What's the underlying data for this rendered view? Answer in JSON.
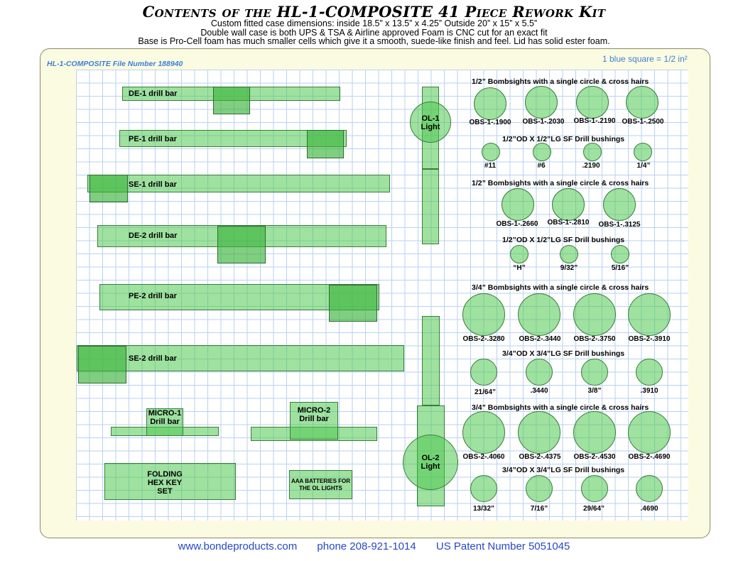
{
  "header": {
    "title": "Contents of the HL-1-COMPOSITE 41 Piece Rework Kit",
    "line1": "Custom fitted case dimensions: inside 18.5” x 13.5” x 4.25” Outside 20” x 15” x 5.5”",
    "line2": "Double wall case is both UPS & TSA & Airline approved Foam is CNC cut for an exact fit",
    "line3": "Base is Pro-Cell foam has much smaller cells which give it a smooth, suede-like finish and feel. Lid has solid ester foam."
  },
  "panel": {
    "file_number": "HL-1-COMPOSITE File Number 188940",
    "scale": "1 blue square = 1/2 in²"
  },
  "drill_bars": [
    "DE-1 drill bar",
    "PE-1 drill bar",
    "SE-1 drill bar",
    "DE-2 drill bar",
    "PE-2 drill bar",
    "SE-2 drill bar"
  ],
  "micro": {
    "m1": "MICRO-1 Drill bar",
    "m2": "MICRO-2 Drill bar"
  },
  "folding_hex": "FOLDING HEX KEY SET",
  "aaa": "AAA BATTERIES FOR THE OL LIGHTS",
  "lights": {
    "ol1": "OL-1 Light",
    "ol2": "OL-2 Light"
  },
  "sections": {
    "s1_header": "1/2” Bombsights with a single circle & cross hairs",
    "s1_items": [
      "OBS-1-.1900",
      "OBS-1-.2030",
      "OBS-1-.2190",
      "OBS-1-.2500"
    ],
    "s2_header": "1/2”OD X 1/2”LG SF Drill bushings",
    "s2_items": [
      "#11",
      "#6",
      ".2190",
      "1/4”"
    ],
    "s3_header": "1/2” Bombsights with a single circle & cross hairs",
    "s3_items": [
      "OBS-1-.2660",
      "OBS-1-.2810",
      "OBS-1-.3125"
    ],
    "s4_header": "1/2”OD X 1/2”LG SF Drill bushings",
    "s4_items": [
      "“H”",
      "9/32”",
      "5/16”"
    ],
    "s5_header": "3/4” Bombsights with a single circle & cross hairs",
    "s5_items": [
      "OBS-2-.3280",
      "OBS-2-.3440",
      "OBS-2-.3750",
      "OBS-2-.3910"
    ],
    "s6_header": "3/4”OD X 3/4”LG SF Drill bushings",
    "s6_items": [
      "21/64”",
      ".3440",
      "3/8”",
      ".3910"
    ],
    "s7_header": "3/4” Bombsights with a single circle & cross hairs",
    "s7_items": [
      "OBS-2-.4060",
      "OBS-2-.4375",
      "OBS-2-.4530",
      "OBS-2-.4690"
    ],
    "s8_header": "3/4”OD X 3/4”LG SF Drill bushings",
    "s8_items": [
      "13/32”",
      "7/16”",
      "29/64”",
      ".4690"
    ]
  },
  "footer": {
    "website": "www.bondeproducts.com",
    "phone": "phone 208-921-1014",
    "patent": "US Patent Number 5051045"
  }
}
